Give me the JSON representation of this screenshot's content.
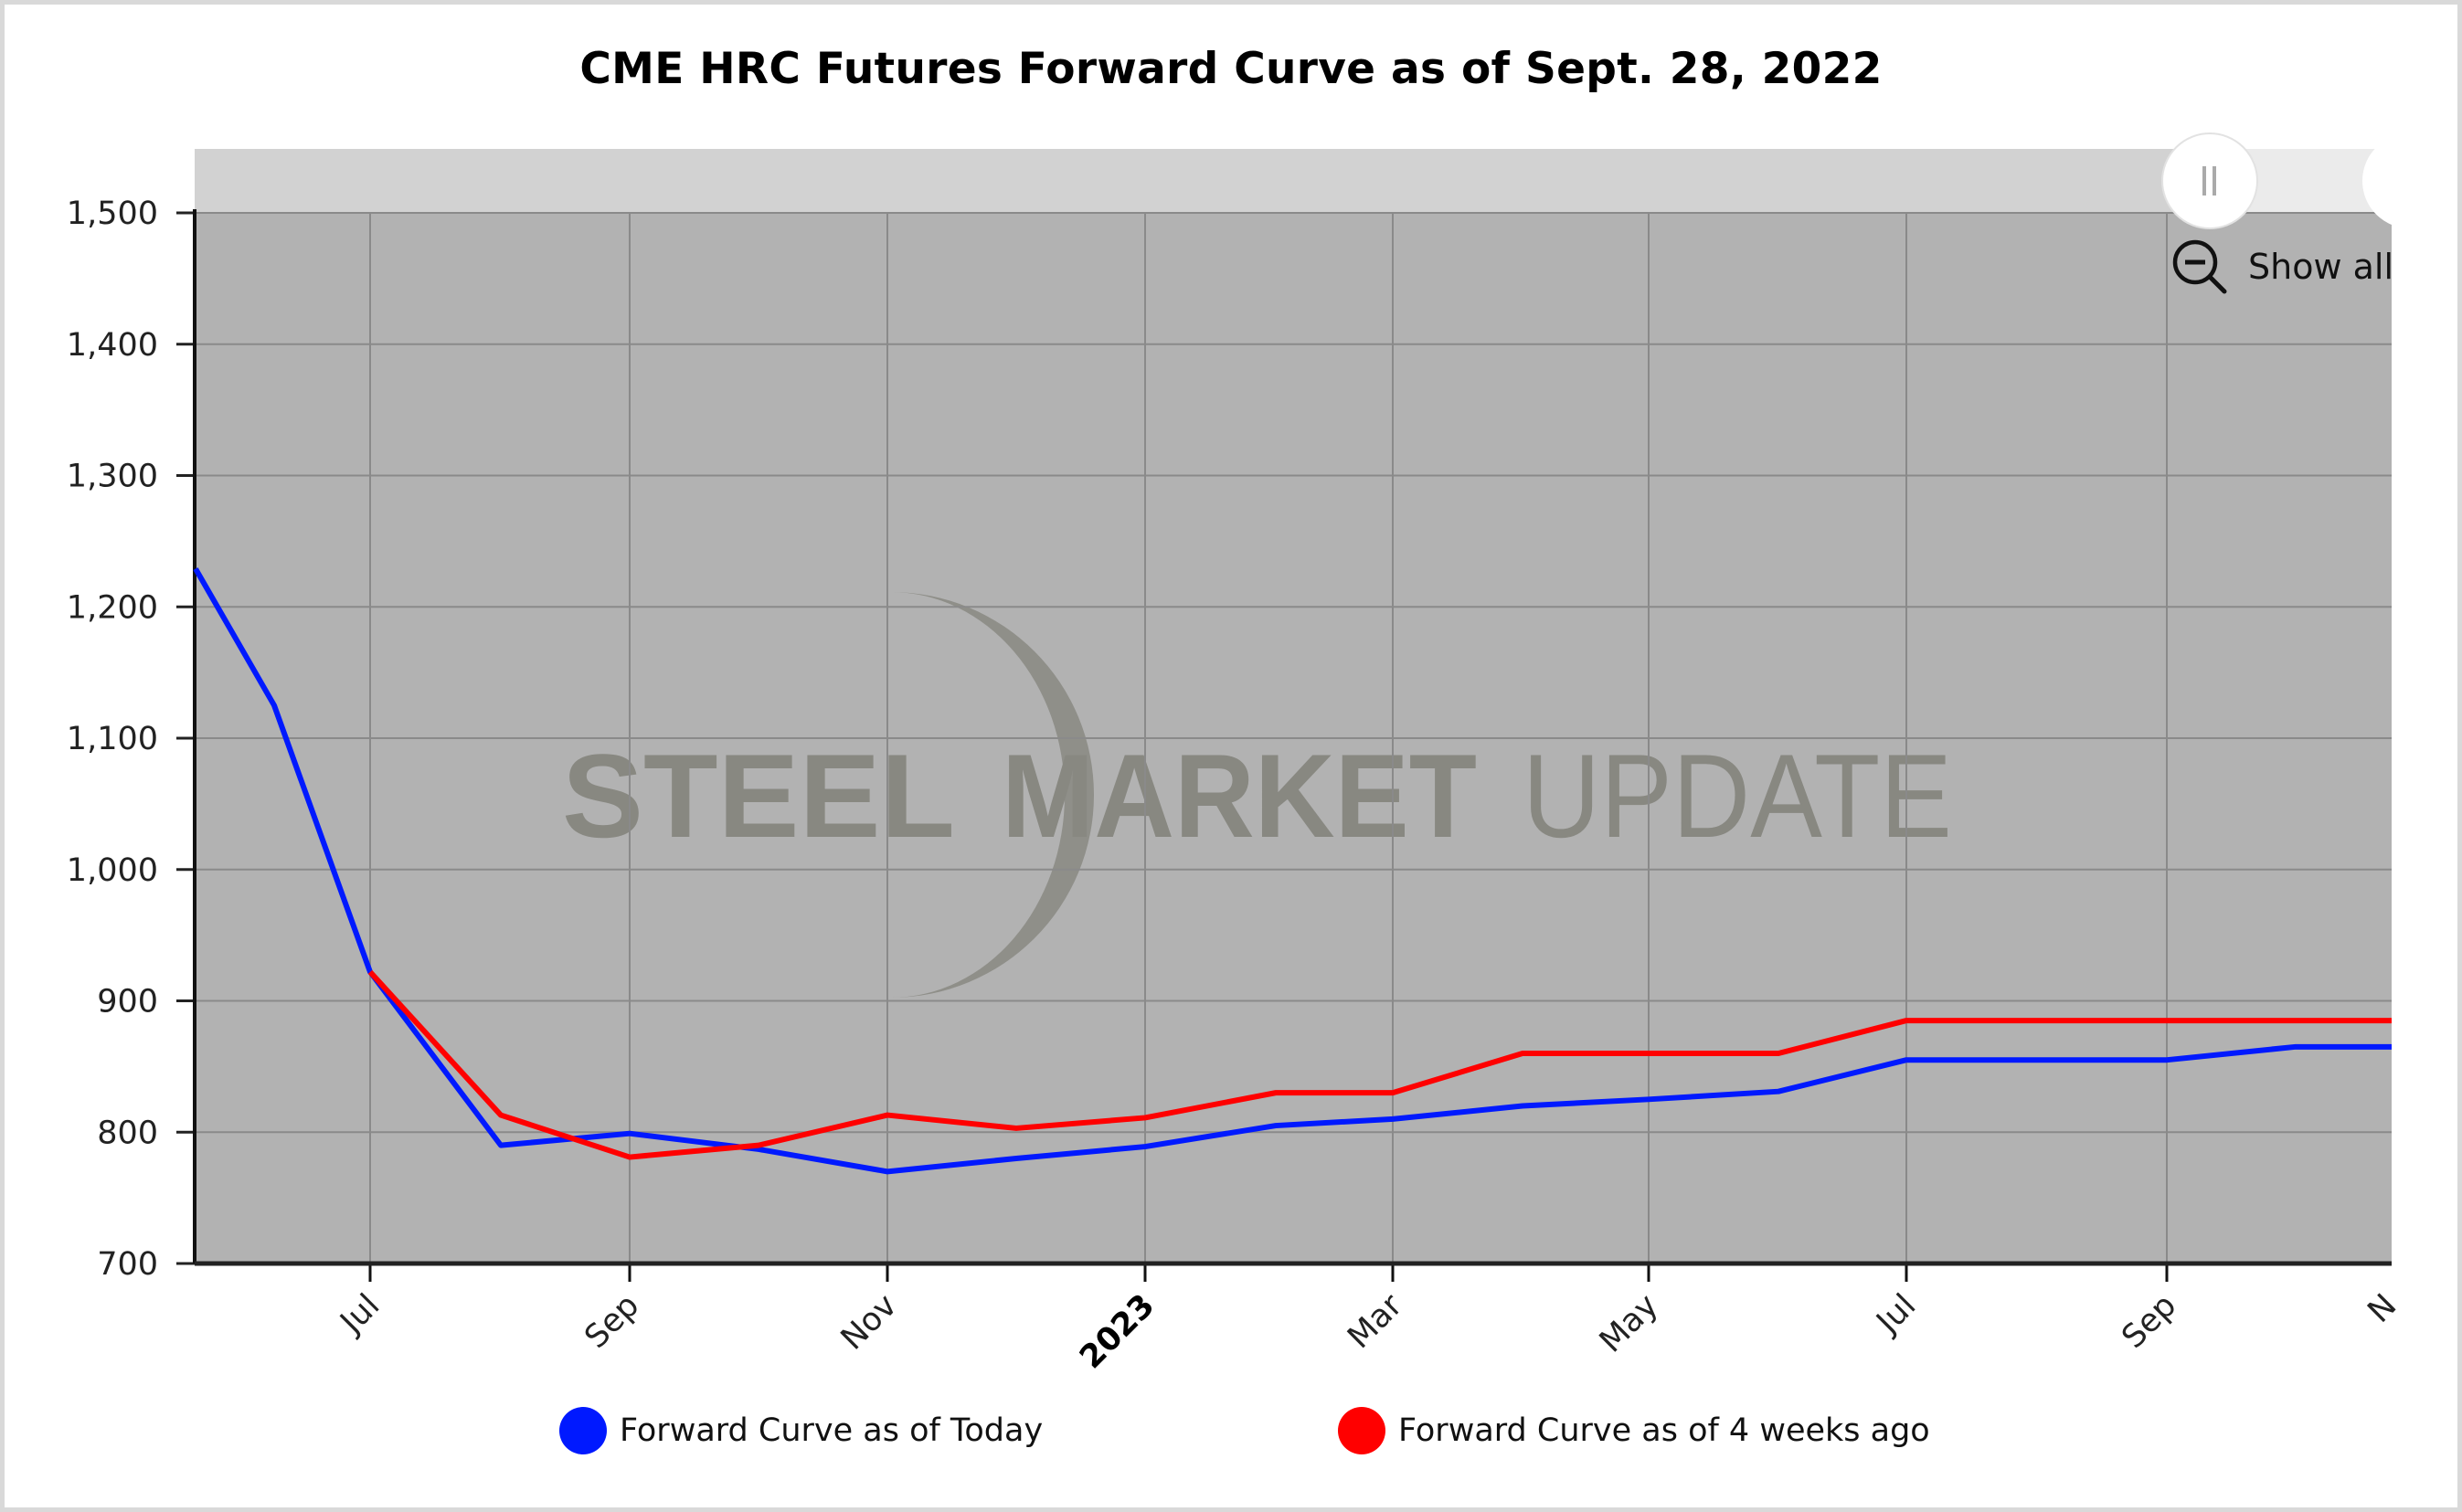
{
  "title": "CME HRC Futures Forward Curve as of Sept. 28, 2022",
  "controls": {
    "show_all_label": "Show all",
    "zoom_out_icon": "zoom-out-icon",
    "scrollbar_handle_icon": "grip-icon"
  },
  "colors": {
    "plot_background": "#b2b2b2",
    "scrollbar_track": "#d2d2d2",
    "scrollbar_selected": "#ebebeb",
    "gridline": "#8a8a8a",
    "series_today": "#0019ff",
    "series_4wk": "#ff0000",
    "watermark": "#86867f"
  },
  "watermark": {
    "word1": "STEEL",
    "word2": "MARKET",
    "word3": "UPDATE"
  },
  "legend": [
    {
      "label": "Forward Curve as of Today",
      "color": "#0019ff"
    },
    {
      "label": "Forward Curve as of 4 weeks ago",
      "color": "#ff0000"
    }
  ],
  "chart_data": {
    "type": "line",
    "title": "CME HRC Futures Forward Curve as of Sept. 28, 2022",
    "xlabel": "",
    "ylabel": "",
    "ylim": [
      700,
      1500
    ],
    "yticks": [
      "1,500",
      "1,400",
      "1,300",
      "1,200",
      "1,100",
      "1,000",
      "900",
      "800",
      "700"
    ],
    "xticks": [
      "Jul",
      "Sep",
      "Nov",
      "2023",
      "Mar",
      "May",
      "Jul",
      "Sep",
      "N"
    ],
    "grid": true,
    "legend_position": "bottom",
    "x": [
      "2022-05-20",
      "2022-06",
      "2022-07",
      "2022-08",
      "2022-09",
      "2022-10",
      "2022-11",
      "2022-12",
      "2023-01",
      "2023-02",
      "2023-03",
      "2023-04",
      "2023-05",
      "2023-06",
      "2023-07",
      "2023-08",
      "2023-09",
      "2023-10",
      "2023-10-24"
    ],
    "series": [
      {
        "name": "Forward Curve as of Today",
        "color": "#0019ff",
        "values": [
          1229,
          1125,
          922,
          790,
          799,
          787,
          770,
          780,
          789,
          805,
          810,
          820,
          825,
          831,
          855,
          855,
          855,
          865,
          865
        ]
      },
      {
        "name": "Forward Curve as of 4 weeks ago",
        "color": "#ff0000",
        "values": [
          null,
          null,
          922,
          813,
          781,
          790,
          813,
          803,
          811,
          830,
          830,
          860,
          860,
          860,
          885,
          885,
          885,
          885,
          885
        ]
      }
    ]
  }
}
